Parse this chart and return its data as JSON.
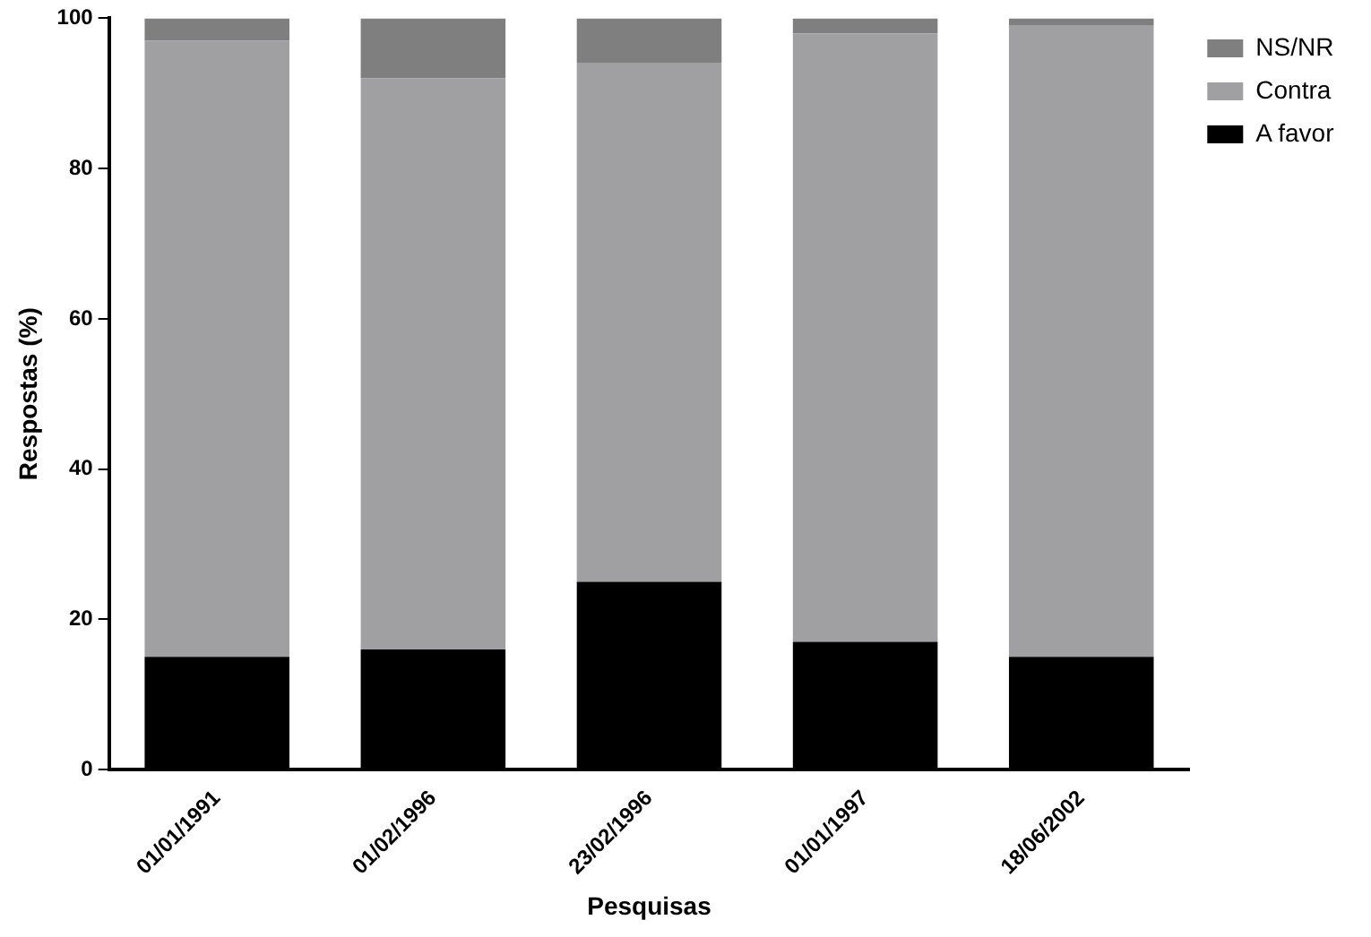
{
  "chart_data": {
    "type": "bar",
    "stacked": true,
    "xlabel": "Pesquisas",
    "ylabel": "Respostas (%)",
    "categories": [
      "01/01/1991",
      "01/02/1996",
      "23/02/1996",
      "01/01/1997",
      "18/06/2002"
    ],
    "series": [
      {
        "name": "A favor",
        "color": "#000000",
        "values": [
          15,
          16,
          25,
          17,
          15
        ]
      },
      {
        "name": "Contra",
        "color": "#a0a0a3",
        "values": [
          82,
          76,
          69,
          81,
          84
        ]
      },
      {
        "name": "NS/NR",
        "color": "#7f7f7f",
        "values": [
          3,
          8,
          6,
          2,
          1
        ]
      }
    ],
    "ylim": [
      0,
      100
    ],
    "yticks": [
      0,
      20,
      40,
      60,
      80,
      100
    ],
    "grid": false,
    "legend": "top right"
  }
}
